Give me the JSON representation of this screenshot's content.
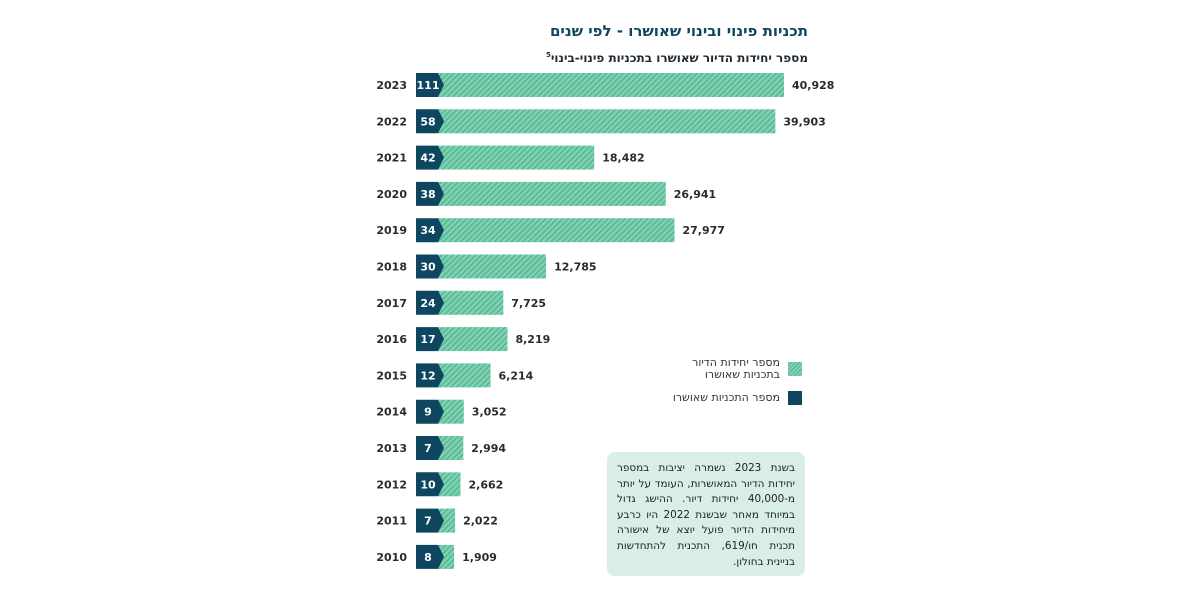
{
  "title": "תכניות פינוי ובינוי שאושרו - לפי שנים",
  "subtitle": "מספר יחידות הדיור שאושרו בתכניות פינוי-בינוי",
  "subtitle_footnote": "5",
  "legend": {
    "units_label": "מספר יחידות הדיור בתכניות שאושרו",
    "plans_label": "מספר התכניות שאושרו"
  },
  "note": "בשנת 2023 נשמרה יציבות במספר יחידות הדיור המאושרות, העומד על יותר מ-40,000 יחידות דיור. ההישג גדול במיוחד מאחר שבשנת 2022 היו כרבע מיחידות הדיור פועל יוצא של אישורה תכנית חו/619, התכנית להתחדשות בניינית בחולון.",
  "colors": {
    "title": "#114660",
    "plans": "#0d465e",
    "units_fill": "#7fd1b0",
    "units_stripe": "#4fb490",
    "note_bg": "#d9efe6"
  },
  "chart_data": {
    "type": "bar",
    "orientation": "horizontal",
    "categories": [
      "2023",
      "2022",
      "2021",
      "2020",
      "2019",
      "2018",
      "2017",
      "2016",
      "2015",
      "2014",
      "2013",
      "2012",
      "2011",
      "2010"
    ],
    "series": [
      {
        "name": "מספר יחידות הדיור בתכניות שאושרו",
        "values": [
          40928,
          39903,
          18482,
          26941,
          27977,
          12785,
          7725,
          8219,
          6214,
          3052,
          2994,
          2662,
          2022,
          1909
        ],
        "labels": [
          "40,928",
          "39,903",
          "18,482",
          "26,941",
          "27,977",
          "12,785",
          "7,725",
          "8,219",
          "6,214",
          "3,052",
          "2,994",
          "2,662",
          "2,022",
          "1,909"
        ]
      },
      {
        "name": "מספר התכניות שאושרו",
        "values": [
          111,
          58,
          42,
          38,
          34,
          30,
          24,
          17,
          12,
          9,
          7,
          10,
          7,
          8
        ]
      }
    ],
    "legend": "right",
    "grid": false
  }
}
